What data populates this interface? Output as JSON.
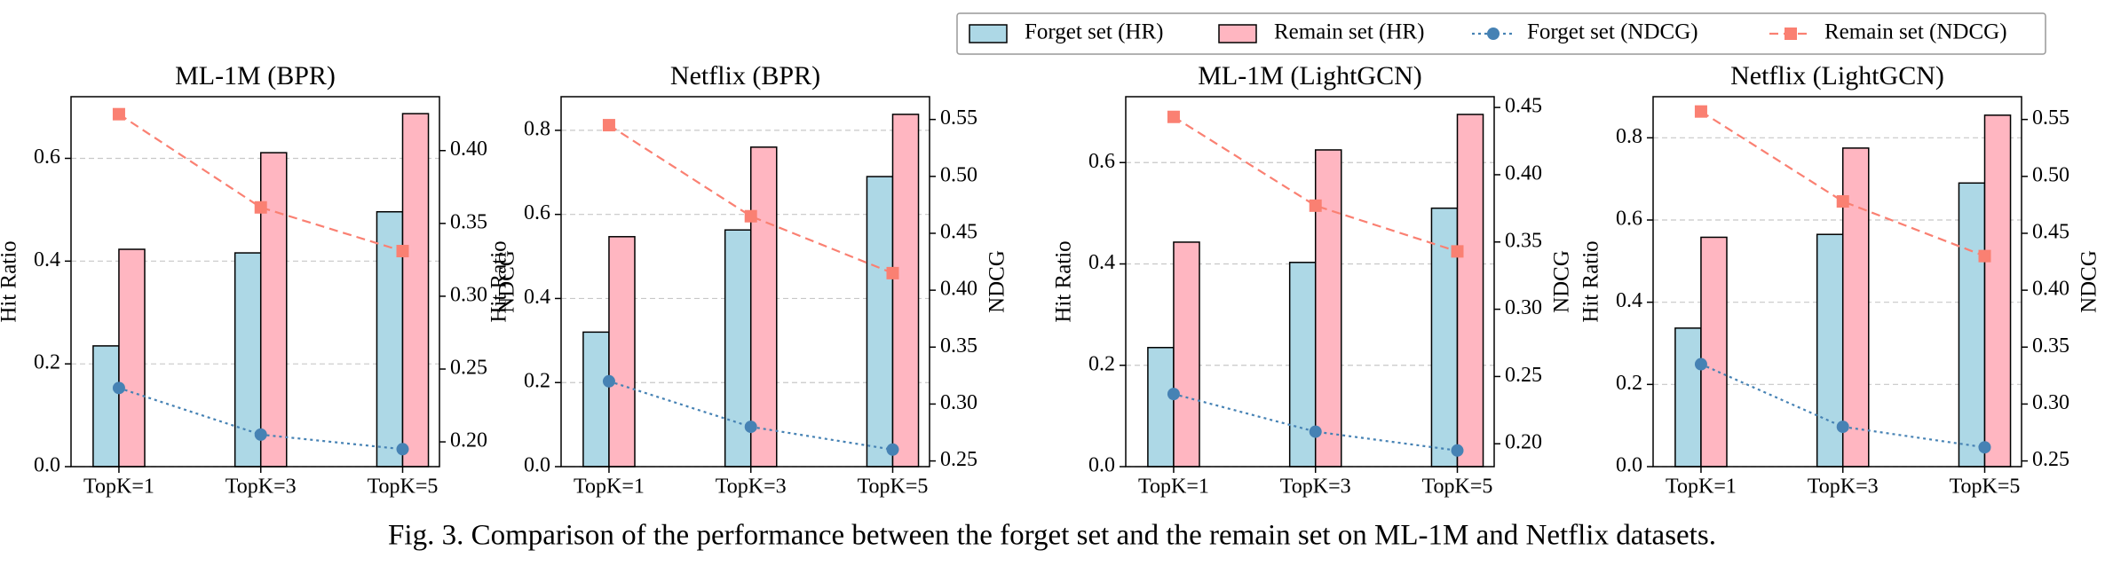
{
  "legend": {
    "position": "upper right"
  },
  "caption": "Fig. 3.  Comparison of the performance between the forget set and the remain set on ML-1M and Netflix datasets.",
  "chart_data": [
    {
      "type": "bar",
      "title": "ML-1M (BPR)",
      "ylabel": "Hit Ratio",
      "y2label": "NDCG",
      "grid": true,
      "categories": [
        "TopK=1",
        "TopK=3",
        "TopK=5"
      ],
      "ylim": [
        0,
        0.72
      ],
      "yticks": [
        {
          "value": 0,
          "label": "0.0"
        },
        0.2,
        0.4,
        0.6
      ],
      "y2lim": [
        0.183,
        0.437
      ],
      "y2ticks": [
        {
          "value": 0.2,
          "label": "0.20"
        },
        0.25,
        {
          "value": 0.3,
          "label": "0.30"
        },
        0.35,
        {
          "value": 0.4,
          "label": "0.40"
        }
      ],
      "series": [
        {
          "name": "Forget set (HR)",
          "color": "#add8e6",
          "values": [
            0.235,
            0.416,
            0.496
          ]
        },
        {
          "name": "Remain set (HR)",
          "color": "#ffb6c1",
          "values": [
            0.423,
            0.611,
            0.687
          ]
        },
        {
          "name": "Forget set (NDCG)",
          "color": "#4682b4",
          "axis": "y2",
          "marker": "circle",
          "linestyle": "dotted",
          "values": [
            0.237,
            0.205,
            0.195
          ]
        },
        {
          "name": "Remain set (NDCG)",
          "color": "#fa8072",
          "axis": "y2",
          "marker": "square",
          "linestyle": "dashed",
          "values": [
            0.425,
            0.361,
            0.331
          ]
        }
      ]
    },
    {
      "type": "bar",
      "title": "Netflix (BPR)",
      "ylabel": "Hit Ratio",
      "y2label": "NDCG",
      "grid": true,
      "categories": [
        "TopK=1",
        "TopK=3",
        "TopK=5"
      ],
      "ylim": [
        0,
        0.88
      ],
      "yticks": [
        {
          "value": 0,
          "label": "0.0"
        },
        0.2,
        0.4,
        0.6,
        0.8
      ],
      "y2lim": [
        0.245,
        0.57
      ],
      "y2ticks": [
        0.25,
        {
          "value": 0.3,
          "label": "0.30"
        },
        0.35,
        {
          "value": 0.4,
          "label": "0.40"
        },
        0.45,
        {
          "value": 0.5,
          "label": "0.50"
        },
        0.55
      ],
      "series": [
        {
          "name": "Forget set (HR)",
          "color": "#add8e6",
          "values": [
            0.32,
            0.563,
            0.69
          ]
        },
        {
          "name": "Remain set (HR)",
          "color": "#ffb6c1",
          "values": [
            0.547,
            0.76,
            0.838
          ]
        },
        {
          "name": "Forget set (NDCG)",
          "color": "#4682b4",
          "axis": "y2",
          "marker": "circle",
          "linestyle": "dotted",
          "values": [
            0.32,
            0.28,
            0.26
          ]
        },
        {
          "name": "Remain set (NDCG)",
          "color": "#fa8072",
          "axis": "y2",
          "marker": "square",
          "linestyle": "dashed",
          "values": [
            0.545,
            0.465,
            0.415
          ]
        }
      ]
    },
    {
      "type": "bar",
      "title": "ML-1M (LightGCN)",
      "ylabel": "Hit Ratio",
      "y2label": "NDCG",
      "grid": true,
      "categories": [
        "TopK=1",
        "TopK=3",
        "TopK=5"
      ],
      "ylim": [
        0,
        0.73
      ],
      "yticks": [
        {
          "value": 0,
          "label": "0.0"
        },
        0.2,
        0.4,
        0.6
      ],
      "y2lim": [
        0.183,
        0.458
      ],
      "y2ticks": [
        {
          "value": 0.2,
          "label": "0.20"
        },
        0.25,
        {
          "value": 0.3,
          "label": "0.30"
        },
        0.35,
        {
          "value": 0.4,
          "label": "0.40"
        },
        0.45
      ],
      "series": [
        {
          "name": "Forget set (HR)",
          "color": "#add8e6",
          "values": [
            0.235,
            0.403,
            0.51
          ]
        },
        {
          "name": "Remain set (HR)",
          "color": "#ffb6c1",
          "values": [
            0.443,
            0.625,
            0.695
          ]
        },
        {
          "name": "Forget set (NDCG)",
          "color": "#4682b4",
          "axis": "y2",
          "marker": "circle",
          "linestyle": "dotted",
          "values": [
            0.237,
            0.209,
            0.195
          ]
        },
        {
          "name": "Remain set (NDCG)",
          "color": "#fa8072",
          "axis": "y2",
          "marker": "square",
          "linestyle": "dashed",
          "values": [
            0.443,
            0.377,
            0.343
          ]
        }
      ]
    },
    {
      "type": "bar",
      "title": "Netflix (LightGCN)",
      "ylabel": "Hit Ratio",
      "y2label": "NDCG",
      "grid": true,
      "categories": [
        "TopK=1",
        "TopK=3",
        "TopK=5"
      ],
      "ylim": [
        0,
        0.9
      ],
      "yticks": [
        {
          "value": 0,
          "label": "0.0"
        },
        0.2,
        0.4,
        0.6,
        0.8
      ],
      "y2lim": [
        0.245,
        0.57
      ],
      "y2ticks": [
        0.25,
        {
          "value": 0.3,
          "label": "0.30"
        },
        0.35,
        {
          "value": 0.4,
          "label": "0.40"
        },
        0.45,
        {
          "value": 0.5,
          "label": "0.50"
        },
        0.55
      ],
      "series": [
        {
          "name": "Forget set (HR)",
          "color": "#add8e6",
          "values": [
            0.337,
            0.565,
            0.69
          ]
        },
        {
          "name": "Remain set (HR)",
          "color": "#ffb6c1",
          "values": [
            0.558,
            0.775,
            0.855
          ]
        },
        {
          "name": "Forget set (NDCG)",
          "color": "#4682b4",
          "axis": "y2",
          "marker": "circle",
          "linestyle": "dotted",
          "values": [
            0.335,
            0.28,
            0.262
          ]
        },
        {
          "name": "Remain set (NDCG)",
          "color": "#fa8072",
          "axis": "y2",
          "marker": "square",
          "linestyle": "dashed",
          "values": [
            0.557,
            0.478,
            0.43
          ]
        }
      ]
    }
  ]
}
